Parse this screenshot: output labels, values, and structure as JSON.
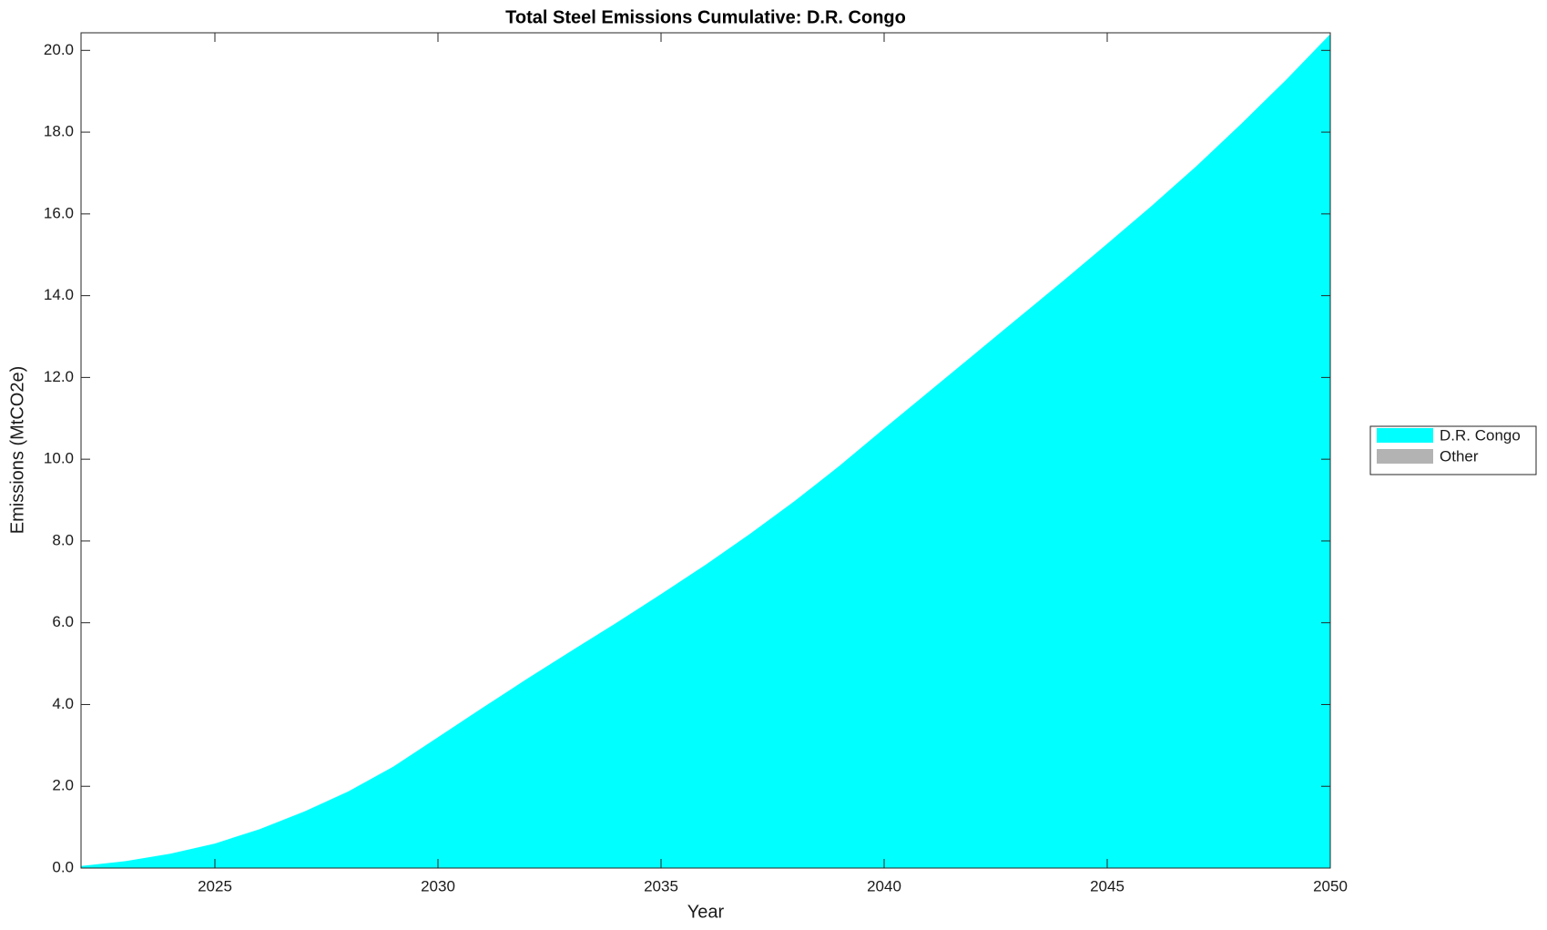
{
  "chart_data": {
    "type": "stacked-area",
    "title": "Total Steel Emissions Cumulative: D.R. Congo",
    "x_label": "Year",
    "y_label": "Emissions (MtCO2e)",
    "x": [
      2022,
      2023,
      2024,
      2025,
      2026,
      2027,
      2028,
      2029,
      2030,
      2031,
      2032,
      2033,
      2034,
      2035,
      2036,
      2037,
      2038,
      2039,
      2040,
      2041,
      2042,
      2043,
      2044,
      2045,
      2046,
      2047,
      2048,
      2049,
      2050
    ],
    "series": [
      {
        "name": "D.R. Congo",
        "color": "#00ffff",
        "values": [
          0.05,
          0.17,
          0.35,
          0.6,
          0.95,
          1.38,
          1.88,
          2.48,
          3.2,
          3.92,
          4.63,
          5.32,
          6.0,
          6.7,
          7.42,
          8.18,
          8.98,
          9.84,
          10.75,
          11.65,
          12.55,
          13.45,
          14.35,
          15.27,
          16.2,
          17.17,
          18.2,
          19.27,
          20.4
        ]
      },
      {
        "name": "Other",
        "color": "#b3b3b3",
        "values": [
          0,
          0,
          0,
          0,
          0,
          0,
          0,
          0,
          0,
          0,
          0,
          0,
          0,
          0,
          0,
          0,
          0,
          0,
          0,
          0,
          0,
          0,
          0,
          0,
          0,
          0,
          0,
          0,
          0
        ]
      }
    ],
    "xlim": [
      2022,
      2050
    ],
    "xticks": [
      2025,
      2030,
      2035,
      2040,
      2045,
      2050
    ],
    "ylim": [
      0,
      20.43
    ],
    "yticks": [
      {
        "value": 0,
        "label": "0.0"
      },
      {
        "value": 2,
        "label": "2.0"
      },
      {
        "value": 4,
        "label": "4.0"
      },
      {
        "value": 6,
        "label": "6.0"
      },
      {
        "value": 8,
        "label": "8.0"
      },
      {
        "value": 10,
        "label": "10.0"
      },
      {
        "value": 12,
        "label": "12.0"
      },
      {
        "value": 14,
        "label": "14.0"
      },
      {
        "value": 16,
        "label": "16.0"
      },
      {
        "value": 18,
        "label": "18.0"
      },
      {
        "value": 20,
        "label": "20.0"
      }
    ],
    "grid": false,
    "legend": "outside-right"
  }
}
